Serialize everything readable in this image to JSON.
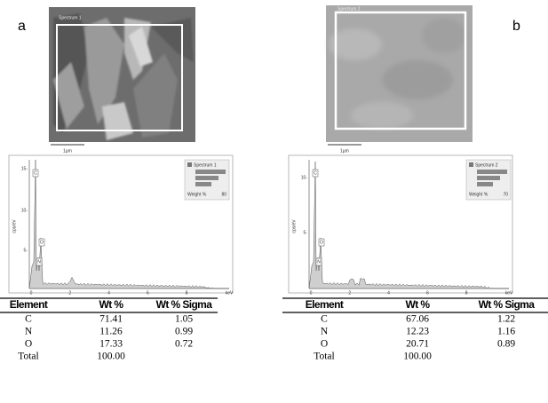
{
  "panels": [
    {
      "label": "a",
      "image": {
        "title": "Spectrum 1",
        "scale": "1µm"
      },
      "spectrum": {
        "y_label": "cps/eV",
        "yticks": [
          "15-",
          "10-",
          "5-"
        ],
        "xticks": [
          "0",
          "2",
          "4",
          "6",
          "8"
        ],
        "x_unit": "keV",
        "peaks": [
          "C",
          "N",
          "O"
        ],
        "legend": {
          "title": "Spectrum 1",
          "footer": "Weight %",
          "max": "80"
        }
      },
      "table": {
        "header": [
          "Element",
          "Wt %",
          "Wt % Sigma"
        ],
        "rows": [
          [
            "C",
            "71.41",
            "1.05"
          ],
          [
            "N",
            "11.26",
            "0.99"
          ],
          [
            "O",
            "17.33",
            "0.72"
          ],
          [
            "Total",
            "100.00"
          ]
        ]
      }
    },
    {
      "label": "b",
      "image": {
        "title": "Spectrum 2",
        "scale": "1µm"
      },
      "spectrum": {
        "y_label": "cps/eV",
        "yticks": [
          "10-",
          "5-"
        ],
        "xticks": [
          "0",
          "2",
          "4",
          "6",
          "8"
        ],
        "x_unit": "keV",
        "peaks": [
          "C",
          "N",
          "O"
        ],
        "legend": {
          "title": "Spectrum 2",
          "footer": "Weight %",
          "max": "70"
        }
      },
      "table": {
        "header": [
          "Element",
          "Wt %",
          "Wt % Sigma"
        ],
        "rows": [
          [
            "C",
            "67.06",
            "1.22"
          ],
          [
            "N",
            "12.23",
            "1.16"
          ],
          [
            "O",
            "20.71",
            "0.89"
          ],
          [
            "Total",
            "100.00"
          ]
        ]
      }
    }
  ]
}
